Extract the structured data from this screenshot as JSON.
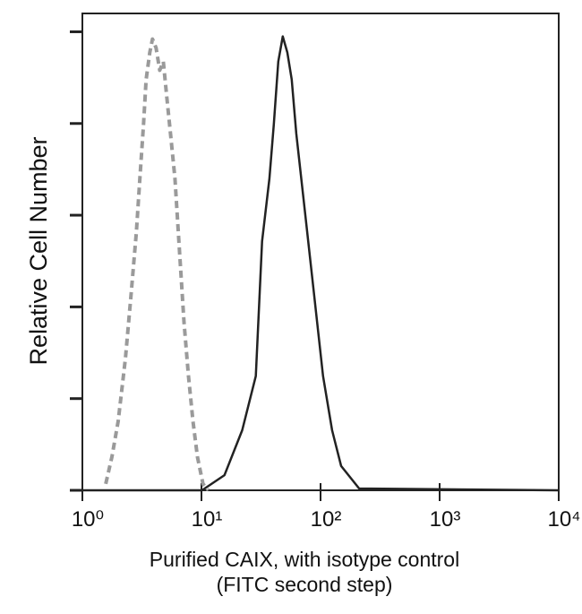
{
  "chart_data": {
    "type": "line",
    "ylabel": "Relative Cell Number",
    "xlabel": [
      "Purified CAIX, with isotype control",
      "(FITC second step)"
    ],
    "xscale": "log",
    "xlim": [
      1,
      10000
    ],
    "xticks": [
      {
        "value": 1,
        "label": "10⁰"
      },
      {
        "value": 10,
        "label": "10¹"
      },
      {
        "value": 100,
        "label": "10²"
      },
      {
        "value": 1000,
        "label": "10³"
      },
      {
        "value": 10000,
        "label": "10⁴"
      }
    ],
    "ylim": [
      0,
      104
    ],
    "yticks": [
      0,
      20,
      40,
      60,
      80,
      100
    ],
    "series": [
      {
        "color": "#9a9a9a",
        "dashed": true,
        "x": [
          1.57,
          1.77,
          2.0,
          2.3,
          2.56,
          2.84,
          3.04,
          3.26,
          3.43,
          3.68,
          3.88,
          4.16,
          4.46,
          4.78,
          5.12,
          5.49,
          5.99,
          6.53,
          7.13,
          7.78,
          8.48,
          9.25,
          10.3,
          11.4
        ],
        "values": [
          1.4,
          7.3,
          15.1,
          28.8,
          42.5,
          56.3,
          68,
          79.8,
          89.6,
          95.5,
          98.4,
          96.5,
          91.6,
          93.5,
          85.7,
          77.8,
          68,
          52.4,
          36.7,
          24.9,
          15.1,
          7.3,
          1.4,
          0
        ]
      },
      {
        "color": "#222222",
        "dashed": false,
        "x": [
          1,
          10.1,
          15.6,
          22.0,
          28.6,
          32.3,
          37.2,
          40.5,
          44.2,
          48.2,
          52.6,
          57.3,
          62.5,
          74.4,
          88.5,
          105,
          125,
          149,
          211,
          10000
        ],
        "values": [
          0,
          0,
          3.3,
          13.1,
          24.9,
          54.3,
          68,
          79.8,
          93.5,
          99,
          95.5,
          89.6,
          77.8,
          60.2,
          42.5,
          24.9,
          13.1,
          5.3,
          0.4,
          0
        ]
      }
    ]
  }
}
